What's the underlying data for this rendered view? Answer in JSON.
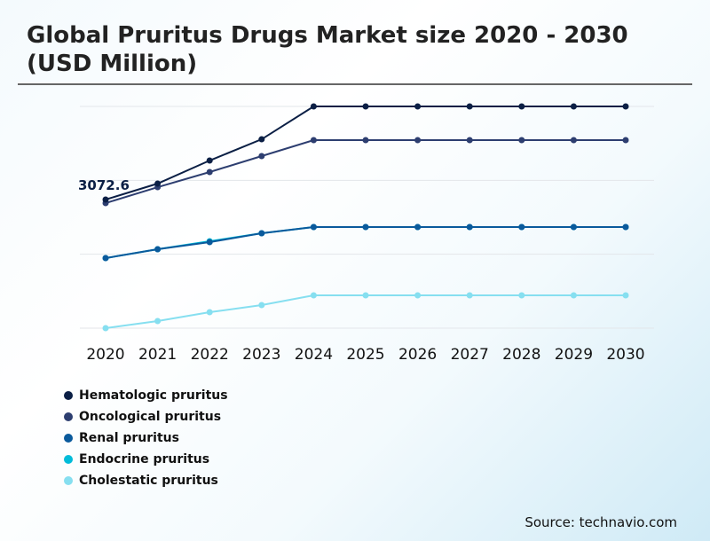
{
  "title": "Global Pruritus Drugs Market size 2020 - 2030 (USD Million)",
  "source": "Source: technavio.com",
  "chart_data": {
    "type": "line",
    "title": "Global Pruritus Drugs Market size 2020 - 2030 (USD Million)",
    "categories": [
      "2020",
      "2021",
      "2022",
      "2023",
      "2024",
      "2025",
      "2026",
      "2027",
      "2028",
      "2029",
      "2030"
    ],
    "ylim": [
      0,
      5298
    ],
    "grid": true,
    "legend_placement": "bottom-left",
    "annotation": {
      "series": "Hematologic pruritus",
      "category": "2020",
      "label": "3072.6"
    },
    "series": [
      {
        "name": "Hematologic pruritus",
        "color": "#0b1f45",
        "values": [
          3072.6,
          3454,
          4005,
          4513,
          5298,
          5298,
          5298,
          5298,
          5298,
          5298,
          5298
        ]
      },
      {
        "name": "Oncological pruritus",
        "color": "#2d3e70",
        "values": [
          2988,
          3369,
          3730,
          4111,
          4492,
          4492,
          4492,
          4492,
          4492,
          4492,
          4492
        ]
      },
      {
        "name": "Renal pruritus",
        "color": "#0a5a9c",
        "values": [
          1674,
          1886,
          2055,
          2267,
          2416,
          2416,
          2416,
          2416,
          2416,
          2416,
          2416
        ]
      },
      {
        "name": "Endocrine pruritus",
        "color": "#00bcd9",
        "values": [
          1674,
          1886,
          2077,
          2267,
          2416,
          2416,
          2416,
          2416,
          2416,
          2416,
          2416
        ]
      },
      {
        "name": "Cholestatic pruritus",
        "color": "#86dff0",
        "values": [
          0,
          170,
          381,
          551,
          784,
          784,
          784,
          784,
          784,
          784,
          784
        ]
      }
    ]
  }
}
